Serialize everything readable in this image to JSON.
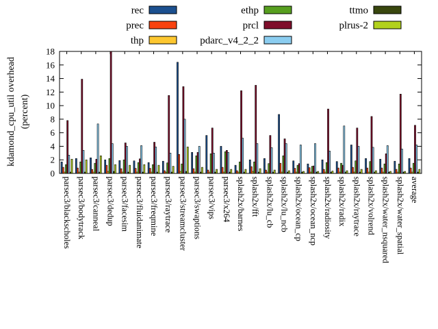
{
  "figure": {
    "background": "#ffffff",
    "ylabel_line1": "kdamond_cpu_util overhead",
    "ylabel_line2": "(percent)"
  },
  "chart_data": {
    "type": "bar",
    "title": "",
    "xlabel": "",
    "ylabel": "kdamond_cpu_util overhead (percent)",
    "ylim": [
      0,
      18
    ],
    "yticks": [
      0,
      2,
      4,
      6,
      8,
      10,
      12,
      14,
      16,
      18
    ],
    "grid": false,
    "legend_position": "top",
    "legend_columns": [
      [
        "rec",
        "prec",
        "thp"
      ],
      [
        "ethp",
        "prcl",
        "pdarc_v4_2_2"
      ],
      [
        "ttmo",
        "plrus-2"
      ]
    ],
    "categories": [
      "parsec3/blackscholes",
      "parsec3/bodytrack",
      "parsec3/canneal",
      "parsec3/dedup",
      "parsec3/facesim",
      "parsec3/fluidanimate",
      "parsec3/freqmine",
      "parsec3/raytrace",
      "parsec3/streamcluster",
      "parsec3/swaptions",
      "parsec3/vips",
      "parsec3/x264",
      "splash2x/barnes",
      "splash2x/fft",
      "splash2x/lu_cb",
      "splash2x/lu_ncb",
      "splash2x/ocean_cp",
      "splash2x/ocean_ncp",
      "splash2x/radiosity",
      "splash2x/radix",
      "splash2x/raytrace",
      "splash2x/volrend",
      "splash2x/water_nsquared",
      "splash2x/water_spatial",
      "average"
    ],
    "series": [
      {
        "name": "rec",
        "color": "#1c508f",
        "values": [
          1.7,
          2.2,
          2.3,
          2.0,
          1.9,
          1.85,
          1.6,
          1.8,
          16.4,
          3.1,
          5.6,
          4.0,
          1.2,
          2.0,
          2.2,
          8.7,
          1.85,
          1.4,
          2.0,
          1.75,
          4.2,
          2.2,
          2.1,
          1.8,
          2.2
        ]
      },
      {
        "name": "prec",
        "color": "#f9420f",
        "values": [
          0.9,
          0.8,
          0.6,
          1.2,
          0.7,
          0.75,
          0.75,
          0.4,
          2.8,
          0.7,
          0.5,
          0.9,
          0.4,
          1.0,
          0.5,
          1.5,
          0.75,
          0.85,
          0.6,
          0.8,
          0.9,
          0.8,
          0.8,
          0.6,
          0.8
        ]
      },
      {
        "name": "thp",
        "color": "#fdc730",
        "values": [
          0.2,
          0.2,
          0.2,
          0.3,
          0.2,
          0.2,
          0.2,
          0.2,
          0.3,
          0.2,
          0.2,
          0.2,
          0.2,
          0.3,
          0.2,
          0.2,
          0.2,
          0.2,
          0.2,
          0.2,
          0.2,
          0.2,
          0.2,
          0.2,
          0.2
        ]
      },
      {
        "name": "ethp",
        "color": "#579f1f",
        "values": [
          1.3,
          1.7,
          1.5,
          2.2,
          2.0,
          1.6,
          1.3,
          1.55,
          1.4,
          2.6,
          2.9,
          3.2,
          1.7,
          1.7,
          1.45,
          2.6,
          1.2,
          1.05,
          1.6,
          1.5,
          1.85,
          1.75,
          1.4,
          1.4,
          1.5
        ]
      },
      {
        "name": "prcl",
        "color": "#7f0e2b",
        "values": [
          7.8,
          13.9,
          2.1,
          18.0,
          4.5,
          2.15,
          4.6,
          11.5,
          12.8,
          3.1,
          6.7,
          3.4,
          12.2,
          13.0,
          5.6,
          5.1,
          1.45,
          1.1,
          9.5,
          1.2,
          6.7,
          8.4,
          2.9,
          11.7,
          7.1
        ]
      },
      {
        "name": "pdarc_v4_2_2",
        "color": "#8bcdf0",
        "values": [
          2.7,
          3.4,
          7.3,
          4.4,
          4.0,
          4.1,
          3.9,
          3.0,
          8.0,
          4.0,
          3.0,
          3.1,
          5.2,
          4.4,
          3.8,
          4.4,
          4.2,
          4.4,
          3.3,
          7.0,
          4.0,
          3.85,
          4.1,
          3.6,
          4.2
        ]
      },
      {
        "name": "ttmo",
        "color": "#39470e",
        "values": [
          0.2,
          0.2,
          0.2,
          0.3,
          0.2,
          0.2,
          0.2,
          0.2,
          0.3,
          0.2,
          0.2,
          0.2,
          0.2,
          0.2,
          0.2,
          0.2,
          0.2,
          0.2,
          0.2,
          0.2,
          0.2,
          0.2,
          0.2,
          0.2,
          0.2
        ]
      },
      {
        "name": "plrus-2",
        "color": "#b2d11c",
        "values": [
          2.1,
          2.0,
          2.6,
          1.3,
          1.2,
          1.3,
          1.2,
          1.05,
          3.9,
          0.9,
          0.6,
          0.6,
          0.6,
          0.7,
          0.5,
          0.4,
          0.3,
          0.3,
          0.35,
          0.4,
          0.6,
          0.4,
          0.3,
          0.3,
          0.6
        ]
      }
    ]
  }
}
